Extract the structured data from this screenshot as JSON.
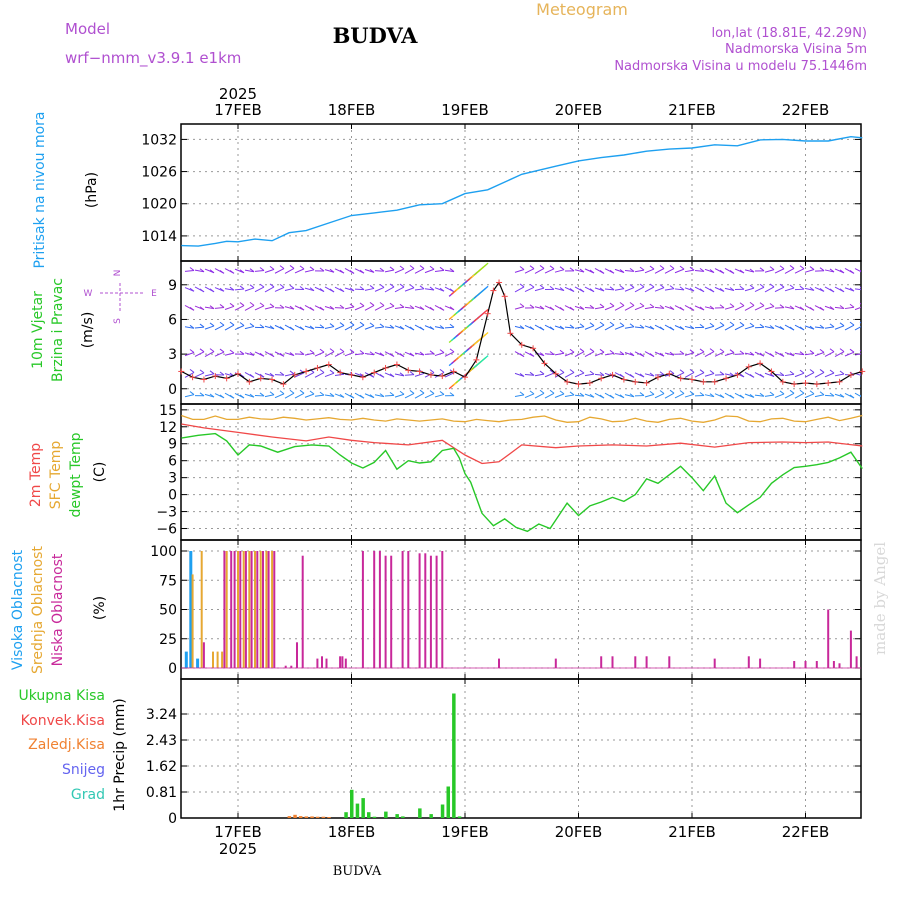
{
  "header": {
    "model_label": "Model",
    "model_name": "wrf−nmm_v3.9.1  e1km",
    "location": "BUDVA",
    "meteogram_label": "Meteogram",
    "coords": "lon,lat (18.81E, 42.29N)",
    "elevation": "Nadmorska Visina 5m",
    "model_elevation": "Nadmorska Visina u modelu 75.1446m"
  },
  "footer": {
    "location": "BUDVA",
    "watermark": "made by Angel"
  },
  "colors": {
    "pressure": "#1ea0f0",
    "temp2m": "#f04848",
    "sfc": "#e6a832",
    "dewpt": "#28c828",
    "visoka": "#1ea0f0",
    "srednja": "#e6a832",
    "niska": "#c8289a",
    "ukupna": "#28c828",
    "konvek": "#f04848",
    "zaledj": "#f08232",
    "snijeg": "#6464f0",
    "grad": "#32c8b4",
    "model": "#b050d0",
    "wind_arrow": "#8c2ce6"
  },
  "chart_data": [
    {
      "type": "line",
      "panel": "pressure",
      "ylabel_left": "Pritisak na nivou mora",
      "ylabel_unit": "(hPa)",
      "x_ticks_top": [
        "17FEB",
        "18FEB",
        "19FEB",
        "20FEB",
        "21FEB",
        "22FEB"
      ],
      "year_label": "2025",
      "yticks": [
        1014,
        1020,
        1026,
        1032
      ],
      "ylim": [
        1011,
        1034.5
      ],
      "x_days_range": [
        -0.5,
        5.5
      ],
      "grid": true,
      "series": [
        {
          "name": "Pritisak",
          "x": [
            -0.5,
            -0.35,
            -0.2,
            -0.1,
            0,
            0.15,
            0.3,
            0.45,
            0.6,
            0.8,
            1,
            1.2,
            1.4,
            1.6,
            1.8,
            2,
            2.2,
            2.5,
            2.8,
            3,
            3.2,
            3.4,
            3.6,
            3.8,
            4,
            4.2,
            4.4,
            4.6,
            4.8,
            5,
            5.2,
            5.4,
            5.5
          ],
          "y": [
            1012.2,
            1012.1,
            1012.6,
            1013.0,
            1012.9,
            1013.4,
            1013.1,
            1014.6,
            1015.0,
            1016.4,
            1017.8,
            1018.3,
            1018.8,
            1019.8,
            1020.0,
            1021.9,
            1022.6,
            1025.5,
            1027.0,
            1028.0,
            1028.6,
            1029.1,
            1029.8,
            1030.2,
            1030.4,
            1031.0,
            1030.8,
            1031.9,
            1032.0,
            1031.7,
            1031.7,
            1032.5,
            1032.3
          ]
        }
      ]
    },
    {
      "type": "line",
      "panel": "wind",
      "ylabel_left": [
        "10m Vjetar",
        "Brzina i Pravac"
      ],
      "ylabel_unit": "(m/s)",
      "compass": [
        "N",
        "E",
        "S",
        "W"
      ],
      "yticks": [
        0,
        3,
        6,
        9
      ],
      "ylim": [
        -0.8,
        10.8
      ],
      "grid": true,
      "series": [
        {
          "name": "Brzina",
          "x": [
            -0.5,
            -0.4,
            -0.3,
            -0.2,
            -0.1,
            0,
            0.1,
            0.2,
            0.3,
            0.4,
            0.5,
            0.6,
            0.7,
            0.8,
            0.9,
            1,
            1.1,
            1.2,
            1.3,
            1.4,
            1.5,
            1.6,
            1.7,
            1.8,
            1.9,
            2,
            2.1,
            2.2,
            2.25,
            2.3,
            2.35,
            2.4,
            2.5,
            2.6,
            2.7,
            2.8,
            2.9,
            3,
            3.1,
            3.2,
            3.3,
            3.4,
            3.5,
            3.6,
            3.7,
            3.8,
            3.9,
            4,
            4.1,
            4.2,
            4.3,
            4.4,
            4.5,
            4.6,
            4.7,
            4.8,
            4.9,
            5,
            5.1,
            5.2,
            5.3,
            5.4,
            5.5
          ],
          "y": [
            1.5,
            1.0,
            0.8,
            1.1,
            0.9,
            1.3,
            0.6,
            0.9,
            0.8,
            0.4,
            1.2,
            1.5,
            1.8,
            2.1,
            1.4,
            1.2,
            1.0,
            1.4,
            1.8,
            2.1,
            1.6,
            1.5,
            1.2,
            1.1,
            1.5,
            1.0,
            2.5,
            6.5,
            8.5,
            9.2,
            8.0,
            4.8,
            3.8,
            3.5,
            2.2,
            1.3,
            0.6,
            0.4,
            0.5,
            0.9,
            1.2,
            0.8,
            0.6,
            0.5,
            1.0,
            1.3,
            0.9,
            0.8,
            0.6,
            0.6,
            0.9,
            1.2,
            1.9,
            2.2,
            1.5,
            0.6,
            0.4,
            0.5,
            0.4,
            0.5,
            0.6,
            1.2,
            1.5
          ]
        }
      ]
    },
    {
      "type": "line",
      "panel": "temperature",
      "ylabel_left": [
        "2m Temp",
        "SFC Temp",
        "dewpt Temp"
      ],
      "ylabel_unit": "(C)",
      "yticks": [
        -6,
        -3,
        0,
        3,
        6,
        9,
        12,
        15
      ],
      "ylim": [
        -7.5,
        15.5
      ],
      "grid": true,
      "series": [
        {
          "name": "2m Temp",
          "x": [
            -0.5,
            -0.3,
            0,
            0.3,
            0.6,
            0.8,
            1,
            1.2,
            1.5,
            1.8,
            2,
            2.15,
            2.3,
            2.5,
            2.8,
            3,
            3.3,
            3.6,
            3.9,
            4.2,
            4.5,
            4.8,
            5,
            5.2,
            5.5
          ],
          "y": [
            12.5,
            11.8,
            11.0,
            10.2,
            9.5,
            10.2,
            9.6,
            9.2,
            8.8,
            9.6,
            7.0,
            5.5,
            5.8,
            8.8,
            8.3,
            8.6,
            8.8,
            8.6,
            9.1,
            8.4,
            9.2,
            9.3,
            9.2,
            9.3,
            8.6
          ]
        },
        {
          "name": "SFC Temp",
          "x": [
            -0.5,
            -0.4,
            -0.3,
            -0.2,
            -0.1,
            0,
            0.1,
            0.2,
            0.3,
            0.4,
            0.5,
            0.6,
            0.7,
            0.8,
            0.9,
            1,
            1.1,
            1.2,
            1.3,
            1.4,
            1.5,
            1.6,
            1.7,
            1.8,
            1.9,
            2,
            2.1,
            2.2,
            2.3,
            2.4,
            2.5,
            2.6,
            2.7,
            2.8,
            2.9,
            3,
            3.1,
            3.2,
            3.3,
            3.4,
            3.5,
            3.6,
            3.7,
            3.8,
            3.9,
            4,
            4.1,
            4.2,
            4.3,
            4.4,
            4.5,
            4.6,
            4.7,
            4.8,
            4.9,
            5,
            5.1,
            5.2,
            5.3,
            5.4,
            5.5
          ],
          "y": [
            14.0,
            13.3,
            13.3,
            13.9,
            13.3,
            13.3,
            13.7,
            13.4,
            13.3,
            13.7,
            13.5,
            13.2,
            13.4,
            13.6,
            13.3,
            13.2,
            13.5,
            13.2,
            13.0,
            13.4,
            13.2,
            13.0,
            13.2,
            13.4,
            13.0,
            12.9,
            13.3,
            13.1,
            12.9,
            13.2,
            13.3,
            13.7,
            13.9,
            13.2,
            12.8,
            12.9,
            13.7,
            13.4,
            12.9,
            13.0,
            13.5,
            13.0,
            12.8,
            13.3,
            13.5,
            13.0,
            12.8,
            13.2,
            13.9,
            13.8,
            13.0,
            12.9,
            13.4,
            13.5,
            13.0,
            12.9,
            13.3,
            13.7,
            13.1,
            13.5,
            14.0
          ]
        },
        {
          "name": "dewpt Temp",
          "x": [
            -0.5,
            -0.35,
            -0.2,
            -0.1,
            0,
            0.1,
            0.2,
            0.35,
            0.5,
            0.65,
            0.8,
            0.9,
            1,
            1.1,
            1.2,
            1.3,
            1.4,
            1.5,
            1.6,
            1.7,
            1.8,
            1.9,
            1.95,
            2,
            2.05,
            2.15,
            2.25,
            2.35,
            2.45,
            2.55,
            2.65,
            2.75,
            2.8,
            2.9,
            3,
            3.1,
            3.2,
            3.3,
            3.4,
            3.5,
            3.6,
            3.7,
            3.8,
            3.9,
            4,
            4.1,
            4.2,
            4.3,
            4.4,
            4.5,
            4.6,
            4.7,
            4.8,
            4.9,
            5,
            5.1,
            5.2,
            5.3,
            5.4,
            5.5
          ],
          "y": [
            10.0,
            10.5,
            10.8,
            9.5,
            7.0,
            8.8,
            8.6,
            7.5,
            8.5,
            8.8,
            8.6,
            7.0,
            5.6,
            4.7,
            5.7,
            7.8,
            4.5,
            6.0,
            5.6,
            5.8,
            7.8,
            8.2,
            6.5,
            3.7,
            2.2,
            -3.3,
            -5.5,
            -4.3,
            -5.8,
            -6.5,
            -5.2,
            -6.0,
            -4.5,
            -1.5,
            -3.7,
            -2.0,
            -1.3,
            -0.5,
            -1.2,
            0.0,
            2.8,
            2.0,
            3.5,
            5.0,
            3.0,
            0.7,
            3.3,
            -1.5,
            -3.2,
            -1.8,
            -0.5,
            2.0,
            3.5,
            4.8,
            5.0,
            5.3,
            5.7,
            6.5,
            7.5,
            4.6
          ]
        }
      ]
    },
    {
      "type": "bar",
      "panel": "cloud",
      "ylabel_left": [
        "Visoka Oblacnost",
        "Srednja Oblacnost",
        "Niska Oblacnost"
      ],
      "ylabel_unit": "(%)",
      "yticks": [
        0,
        25,
        50,
        75,
        100
      ],
      "ylim": [
        0,
        100
      ],
      "grid": true,
      "series": [
        {
          "name": "Visoka Oblacnost",
          "x": [
            -0.46,
            -0.42,
            -0.36
          ],
          "values": [
            14,
            100,
            8
          ]
        },
        {
          "name": "Srednja Oblacnost",
          "x": [
            -0.4,
            -0.32,
            -0.22,
            -0.18,
            -0.14,
            -0.1,
            0.0,
            0.05,
            0.1,
            0.15,
            0.2,
            0.25,
            0.3
          ],
          "values": [
            80,
            100,
            14,
            14,
            14,
            100,
            100,
            100,
            100,
            100,
            100,
            100,
            100
          ]
        },
        {
          "name": "Niska Oblacnost",
          "x": [
            -0.3,
            -0.12,
            -0.06,
            -0.03,
            0.02,
            0.07,
            0.12,
            0.17,
            0.22,
            0.27,
            0.32,
            0.42,
            0.47,
            0.52,
            0.57,
            0.7,
            0.74,
            0.78,
            0.9,
            0.92,
            0.95,
            1.1,
            1.2,
            1.25,
            1.3,
            1.35,
            1.45,
            1.5,
            1.6,
            1.65,
            1.7,
            1.75,
            1.8,
            2.3,
            2.8,
            3.2,
            3.3,
            3.5,
            3.6,
            3.8,
            4.2,
            4.5,
            4.6,
            4.9,
            5.0,
            5.1,
            5.2,
            5.25,
            5.3,
            5.4,
            5.45
          ],
          "values": [
            22,
            100,
            100,
            100,
            100,
            100,
            100,
            100,
            100,
            100,
            100,
            2,
            2,
            22,
            96,
            8,
            10,
            8,
            10,
            10,
            8,
            100,
            100,
            100,
            96,
            96,
            100,
            100,
            98,
            98,
            96,
            96,
            100,
            8,
            8,
            10,
            10,
            10,
            10,
            10,
            8,
            10,
            8,
            6,
            6,
            6,
            50,
            6,
            4,
            32,
            10
          ]
        }
      ]
    },
    {
      "type": "bar",
      "panel": "precip",
      "ylabel_left": [
        "Ukupna Kisa",
        "Konvek.Kisa",
        "Zaledj.Kisa",
        "Snijeg",
        "Grad"
      ],
      "ylabel_unit": "1hr Precip (mm)",
      "x_ticks_bottom": [
        "17FEB",
        "18FEB",
        "19FEB",
        "20FEB",
        "21FEB",
        "22FEB"
      ],
      "year_label": "2025",
      "yticks": [
        0,
        0.81,
        1.62,
        2.43,
        3.24
      ],
      "ylim": [
        0,
        4.05
      ],
      "grid": true,
      "series": [
        {
          "name": "Ukupna Kisa",
          "x": [
            0.95,
            1.0,
            1.05,
            1.1,
            1.15,
            1.2,
            1.3,
            1.4,
            1.45,
            1.6,
            1.7,
            1.8,
            1.85,
            1.9,
            1.95
          ],
          "values": [
            0.18,
            0.88,
            0.45,
            0.62,
            0.18,
            0.04,
            0.2,
            0.12,
            0.05,
            0.3,
            0.12,
            0.42,
            0.98,
            3.88,
            0.05
          ]
        },
        {
          "name": "Zaledj.Kisa",
          "x": [
            0.45,
            0.5,
            0.55,
            0.6,
            0.65,
            0.7,
            0.75,
            0.8
          ],
          "values": [
            0.06,
            0.1,
            0.06,
            0.05,
            0.05,
            0.04,
            0.04,
            0.03
          ]
        }
      ]
    }
  ]
}
